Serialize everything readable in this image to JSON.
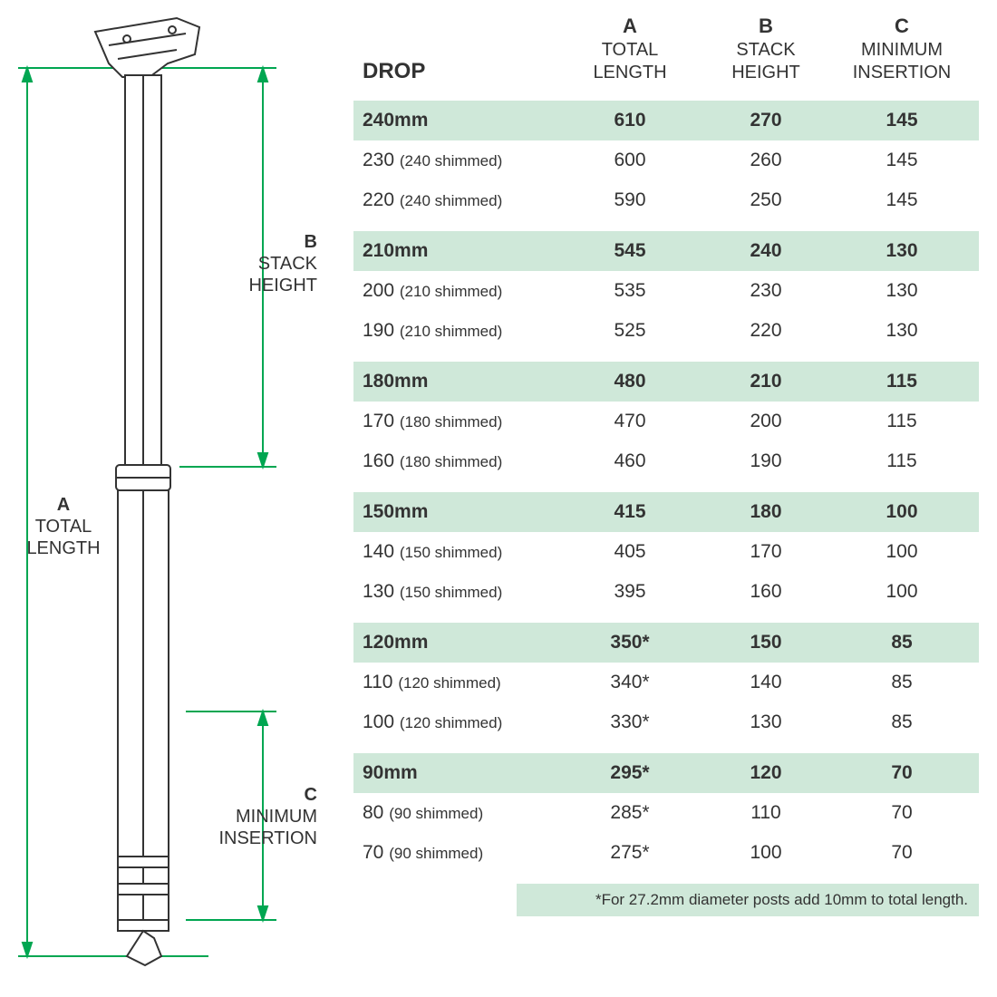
{
  "colors": {
    "background": "#ffffff",
    "text": "#333333",
    "highlight": "#cfe8d9",
    "outline": "#333333",
    "dimension": "#00a651"
  },
  "diagram": {
    "labels": {
      "a_letter": "A",
      "a_text": "TOTAL\nLENGTH",
      "b_letter": "B",
      "b_text": "STACK\nHEIGHT",
      "c_letter": "C",
      "c_text": "MINIMUM\nINSERTION"
    }
  },
  "table": {
    "header": {
      "drop": "DROP",
      "a": {
        "letter": "A",
        "label": "TOTAL\nLENGTH"
      },
      "b": {
        "letter": "B",
        "label": "STACK\nHEIGHT"
      },
      "c": {
        "letter": "C",
        "label": "MINIMUM\nINSERTION"
      }
    },
    "groups": [
      {
        "primary": {
          "drop": "240mm",
          "a": "610",
          "b": "270",
          "c": "145"
        },
        "rows": [
          {
            "drop": "230",
            "shim": "(240 shimmed)",
            "a": "600",
            "b": "260",
            "c": "145"
          },
          {
            "drop": "220",
            "shim": "(240 shimmed)",
            "a": "590",
            "b": "250",
            "c": "145"
          }
        ]
      },
      {
        "primary": {
          "drop": "210mm",
          "a": "545",
          "b": "240",
          "c": "130"
        },
        "rows": [
          {
            "drop": "200",
            "shim": "(210 shimmed)",
            "a": "535",
            "b": "230",
            "c": "130"
          },
          {
            "drop": "190",
            "shim": "(210 shimmed)",
            "a": "525",
            "b": "220",
            "c": "130"
          }
        ]
      },
      {
        "primary": {
          "drop": "180mm",
          "a": "480",
          "b": "210",
          "c": "115"
        },
        "rows": [
          {
            "drop": "170",
            "shim": "(180 shimmed)",
            "a": "470",
            "b": "200",
            "c": "115"
          },
          {
            "drop": "160",
            "shim": "(180 shimmed)",
            "a": "460",
            "b": "190",
            "c": "115"
          }
        ]
      },
      {
        "primary": {
          "drop": "150mm",
          "a": "415",
          "b": "180",
          "c": "100"
        },
        "rows": [
          {
            "drop": "140",
            "shim": "(150 shimmed)",
            "a": "405",
            "b": "170",
            "c": "100"
          },
          {
            "drop": "130",
            "shim": "(150 shimmed)",
            "a": "395",
            "b": "160",
            "c": "100"
          }
        ]
      },
      {
        "primary": {
          "drop": "120mm",
          "a": "350*",
          "b": "150",
          "c": "85"
        },
        "rows": [
          {
            "drop": "110",
            "shim": "(120 shimmed)",
            "a": "340*",
            "b": "140",
            "c": "85"
          },
          {
            "drop": "100",
            "shim": "(120 shimmed)",
            "a": "330*",
            "b": "130",
            "c": "85"
          }
        ]
      },
      {
        "primary": {
          "drop": "90mm",
          "a": "295*",
          "b": "120",
          "c": "70"
        },
        "rows": [
          {
            "drop": "80",
            "shim": "(90 shimmed)",
            "a": "285*",
            "b": "110",
            "c": "70"
          },
          {
            "drop": "70",
            "shim": "(90 shimmed)",
            "a": "275*",
            "b": "100",
            "c": "70"
          }
        ]
      }
    ],
    "footnote": "*For 27.2mm diameter posts add 10mm to total length."
  }
}
